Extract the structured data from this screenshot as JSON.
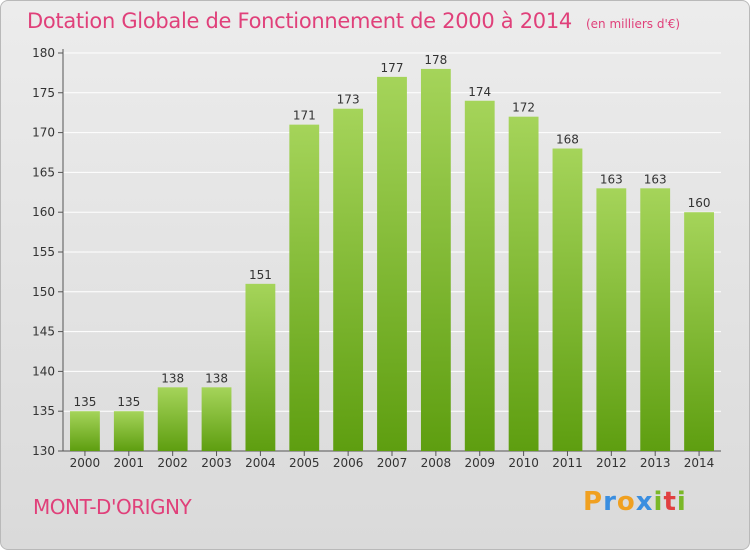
{
  "header": {
    "title": "Dotation Globale de Fonctionnement de 2000 à 2014",
    "unit": "(en milliers d'€)"
  },
  "footer": {
    "commune": "MONT-D'ORIGNY",
    "logo_letters": [
      "P",
      "r",
      "o",
      "x",
      "i",
      "t",
      "i"
    ],
    "logo_colors": [
      "#f0a020",
      "#3a8ee0",
      "#f0a020",
      "#3a8ee0",
      "#7ab828",
      "#e04040",
      "#7ab828"
    ]
  },
  "colors": {
    "title": "#e0407a",
    "bar_light": "#a5d45a",
    "bar_dark": "#5e9e10",
    "grid": "#ffffff"
  },
  "chart_data": {
    "type": "bar",
    "categories": [
      "2000",
      "2001",
      "2002",
      "2003",
      "2004",
      "2005",
      "2006",
      "2007",
      "2008",
      "2009",
      "2010",
      "2011",
      "2012",
      "2013",
      "2014"
    ],
    "values": [
      135,
      135,
      138,
      138,
      151,
      171,
      173,
      177,
      178,
      174,
      172,
      168,
      163,
      163,
      160
    ],
    "ylim": [
      130,
      180
    ],
    "yticks": [
      130,
      135,
      140,
      145,
      150,
      155,
      160,
      165,
      170,
      175,
      180
    ],
    "grid": true,
    "legend": "none"
  }
}
